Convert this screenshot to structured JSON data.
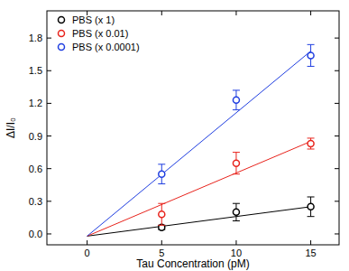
{
  "chart_data": {
    "type": "scatter",
    "x_label": "Tau Concentration (pM)",
    "y_label": "ΔI/I₀",
    "x": [
      5,
      10,
      15
    ],
    "series": [
      {
        "name": "PBS (x 1)",
        "color": "#000000",
        "marker": "circle",
        "values": [
          0.06,
          0.2,
          0.25
        ],
        "errors": [
          0.02,
          0.08,
          0.09
        ],
        "fit_x": [
          0,
          15
        ],
        "fit_values": [
          -0.02,
          0.25
        ]
      },
      {
        "name": "PBS (x 0.01)",
        "color": "#e8231c",
        "marker": "circle",
        "values": [
          0.18,
          0.65,
          0.83
        ],
        "errors": [
          0.1,
          0.1,
          0.05
        ],
        "fit_x": [
          0,
          15
        ],
        "fit_values": [
          -0.02,
          0.85
        ]
      },
      {
        "name": "PBS (x 0.0001)",
        "color": "#1f3ee0",
        "marker": "circle",
        "values": [
          0.55,
          1.23,
          1.64
        ],
        "errors": [
          0.09,
          0.09,
          0.1
        ],
        "fit_x": [
          0,
          15
        ],
        "fit_values": [
          -0.02,
          1.68
        ]
      }
    ],
    "xlim": [
      -2.7,
      16.9
    ],
    "ylim": [
      -0.1,
      2.05
    ],
    "xticks": [
      0,
      5,
      10,
      15
    ],
    "yticks": [
      {
        "value": 0,
        "label": "0.0"
      },
      0.3,
      0.6,
      0.9,
      1.2,
      1.5,
      1.8
    ],
    "legend": "upper-left",
    "grid": false
  }
}
